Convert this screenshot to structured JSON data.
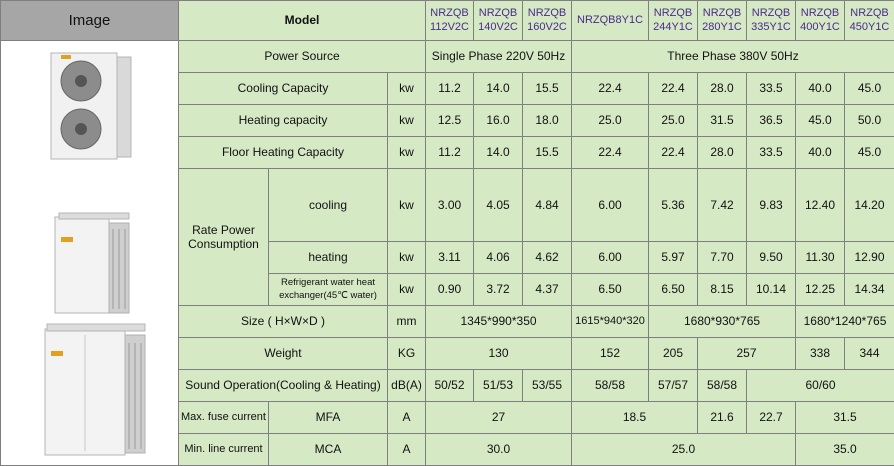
{
  "header": {
    "image": "Image",
    "model": "Model",
    "models": [
      "NRZQB\n112V2C",
      "NRZQB\n140V2C",
      "NRZQB\n160V2C",
      "NRZQB8Y1C",
      "NRZQB\n244Y1C",
      "NRZQB\n280Y1C",
      "NRZQB\n335Y1C",
      "NRZQB\n400Y1C",
      "NRZQB\n450Y1C"
    ]
  },
  "power_source": {
    "label": "Power Source",
    "single": "Single Phase 220V 50Hz",
    "three": "Three Phase 380V 50Hz"
  },
  "cooling_capacity": {
    "label": "Cooling Capacity",
    "unit": "kw",
    "values": [
      "11.2",
      "14.0",
      "15.5",
      "22.4",
      "22.4",
      "28.0",
      "33.5",
      "40.0",
      "45.0"
    ]
  },
  "heating_capacity": {
    "label": "Heating capacity",
    "unit": "kw",
    "values": [
      "12.5",
      "16.0",
      "18.0",
      "25.0",
      "25.0",
      "31.5",
      "36.5",
      "45.0",
      "50.0"
    ]
  },
  "floor_heating": {
    "label": "Floor Heating Capacity",
    "unit": "kw",
    "values": [
      "11.2",
      "14.0",
      "15.5",
      "22.4",
      "22.4",
      "28.0",
      "33.5",
      "40.0",
      "45.0"
    ]
  },
  "rate_power": {
    "label": "Rate Power\nConsumption",
    "cooling": {
      "label": "cooling",
      "unit": "kw",
      "values": [
        "3.00",
        "4.05",
        "4.84",
        "6.00",
        "5.36",
        "7.42",
        "9.83",
        "12.40",
        "14.20"
      ]
    },
    "heating": {
      "label": "heating",
      "unit": "kw",
      "values": [
        "3.11",
        "4.06",
        "4.62",
        "6.00",
        "5.97",
        "7.70",
        "9.50",
        "11.30",
        "12.90"
      ]
    },
    "refrigerant": {
      "label": "Refrigerant water heat\nexchanger(45℃ water)",
      "unit": "kw",
      "values": [
        "0.90",
        "3.72",
        "4.37",
        "6.50",
        "6.50",
        "8.15",
        "10.14",
        "12.25",
        "14.34"
      ]
    }
  },
  "size": {
    "label": "Size ( H×W×D )",
    "unit": "mm",
    "values": [
      "1345*990*350",
      "1615*940*320",
      "1680*930*765",
      "1680*1240*765"
    ]
  },
  "weight": {
    "label": "Weight",
    "unit": "KG",
    "values": [
      "130",
      "152",
      "205",
      "257",
      "338",
      "344"
    ]
  },
  "sound": {
    "label": "Sound Operation(Cooling & Heating)",
    "unit": "dB(A)",
    "values": [
      "50/52",
      "51/53",
      "53/55",
      "58/58",
      "57/57",
      "58/58",
      "60/60"
    ]
  },
  "fuse": {
    "label": "Max. fuse current",
    "sub": "MFA",
    "unit": "A",
    "values": [
      "27",
      "18.5",
      "21.6",
      "22.7",
      "31.5"
    ]
  },
  "line": {
    "label": "Min. line current",
    "sub": "MCA",
    "unit": "A",
    "values": [
      "30.0",
      "25.0",
      "35.0"
    ]
  }
}
